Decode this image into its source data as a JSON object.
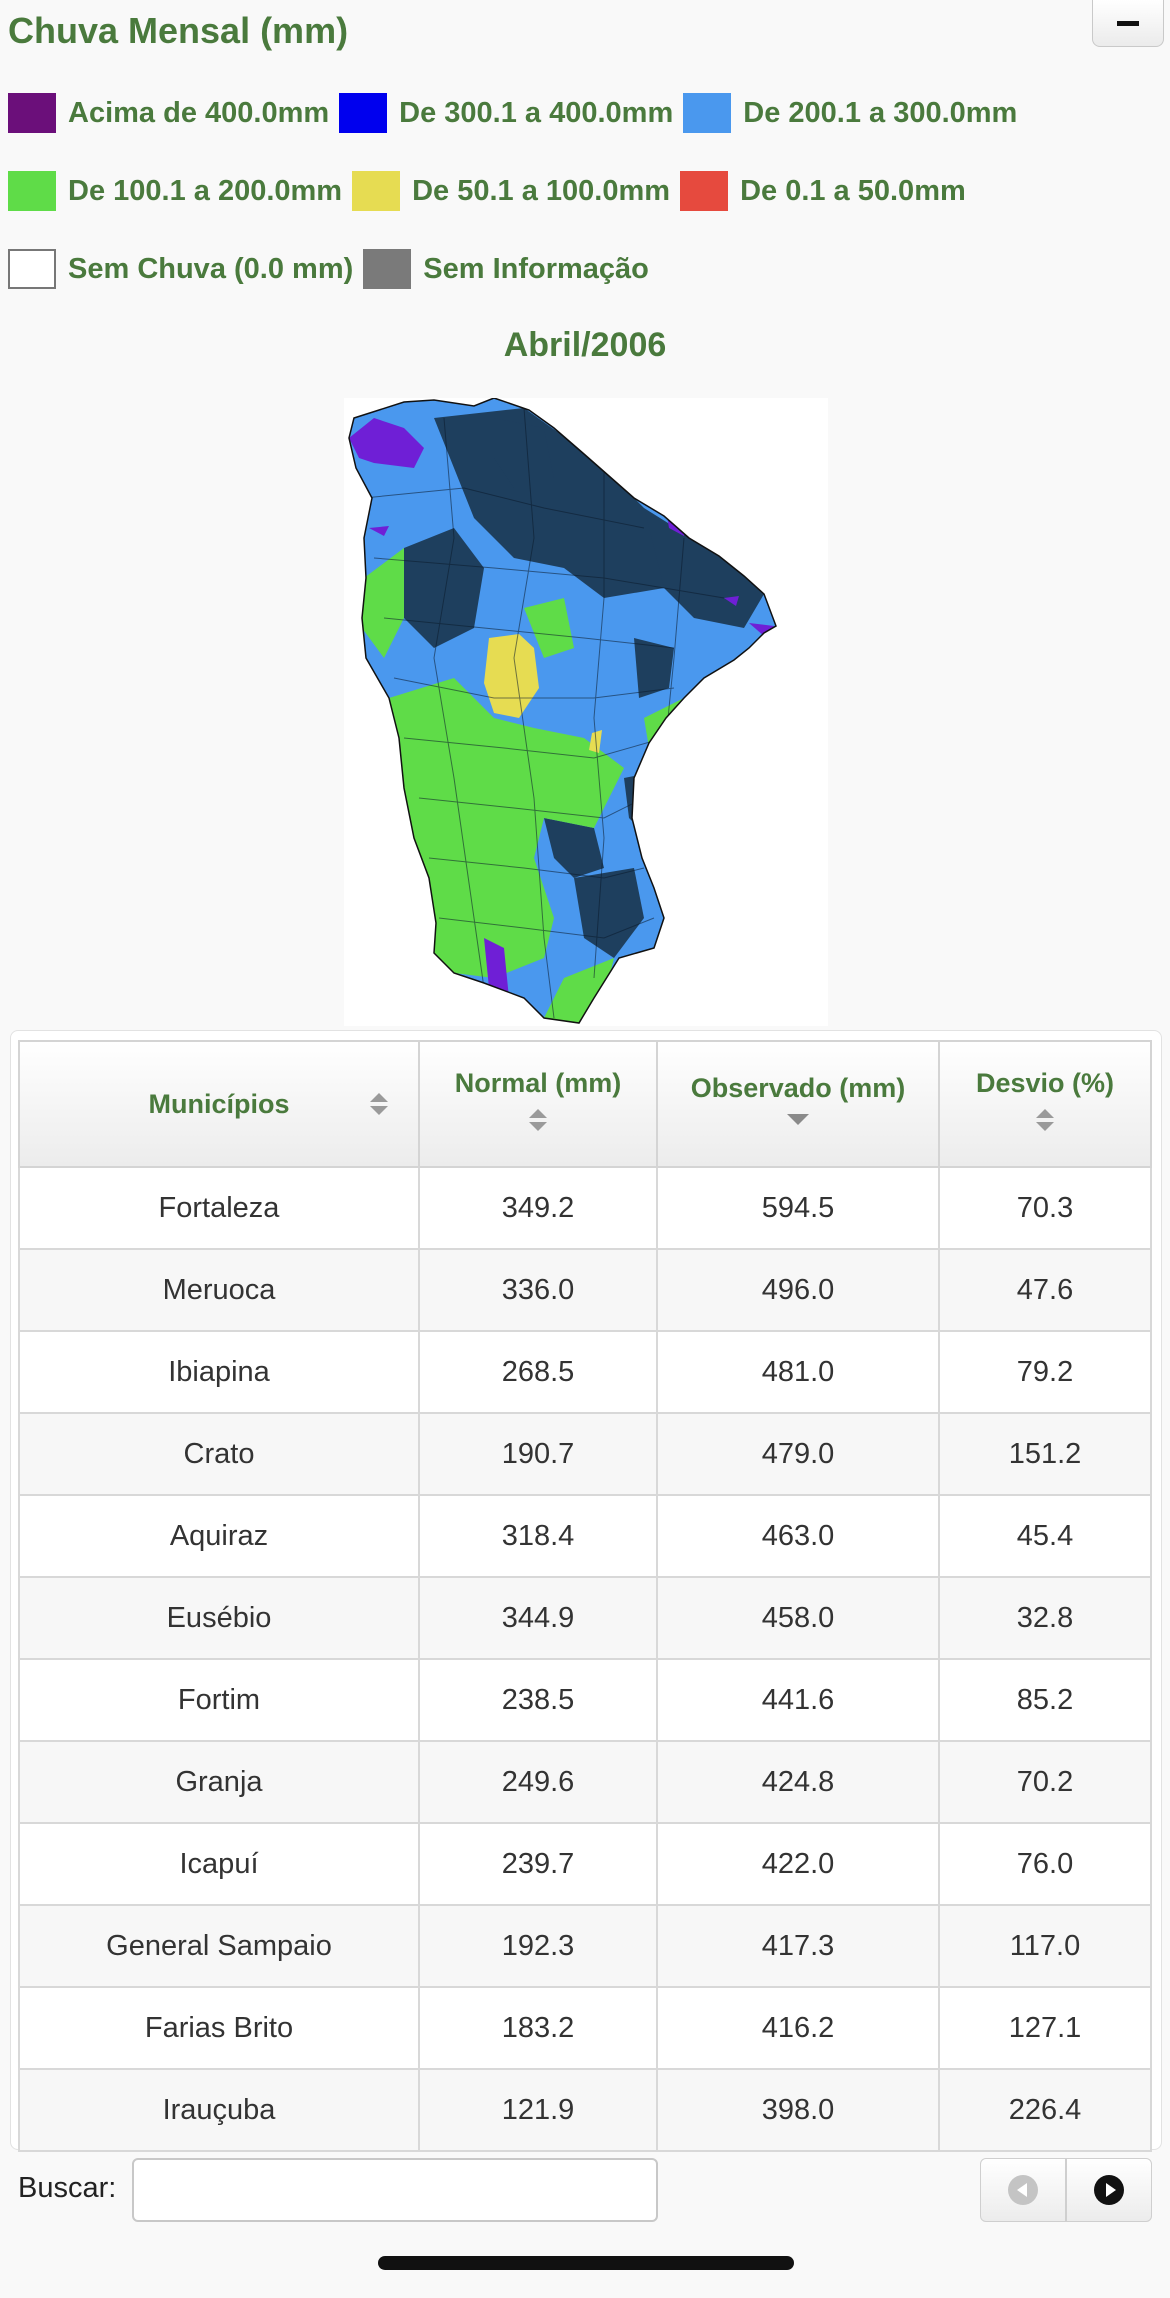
{
  "header": {
    "title": "Chuva Mensal (mm)"
  },
  "legend": [
    [
      {
        "label": "Acima de 400.0mm",
        "color": "#6b0f7a"
      },
      {
        "label": "De 300.1 a 400.0mm",
        "color": "#0000ee"
      },
      {
        "label": "De 200.1 a 300.0mm",
        "color": "#4a98ee"
      }
    ],
    [
      {
        "label": "De 100.1 a 200.0mm",
        "color": "#5fdc48"
      },
      {
        "label": "De 50.1 a 100.0mm",
        "color": "#e6dc52"
      },
      {
        "label": "De 0.1 a 50.0mm",
        "color": "#e64a3e"
      }
    ],
    [
      {
        "label": "Sem Chuva (0.0 mm)",
        "color": "#ffffff"
      },
      {
        "label": "Sem Informação",
        "color": "#7a7a7a"
      }
    ]
  ],
  "map": {
    "title": "Abril/2006"
  },
  "table": {
    "headers": {
      "municipios": "Municípios",
      "normal": "Normal (mm)",
      "observado": "Observado (mm)",
      "desvio": "Desvio (%)"
    },
    "rows": [
      [
        "Fortaleza",
        "349.2",
        "594.5",
        "70.3"
      ],
      [
        "Meruoca",
        "336.0",
        "496.0",
        "47.6"
      ],
      [
        "Ibiapina",
        "268.5",
        "481.0",
        "79.2"
      ],
      [
        "Crato",
        "190.7",
        "479.0",
        "151.2"
      ],
      [
        "Aquiraz",
        "318.4",
        "463.0",
        "45.4"
      ],
      [
        "Eusébio",
        "344.9",
        "458.0",
        "32.8"
      ],
      [
        "Fortim",
        "238.5",
        "441.6",
        "85.2"
      ],
      [
        "Granja",
        "249.6",
        "424.8",
        "70.2"
      ],
      [
        "Icapuí",
        "239.7",
        "422.0",
        "76.0"
      ],
      [
        "General Sampaio",
        "192.3",
        "417.3",
        "117.0"
      ],
      [
        "Farias Brito",
        "183.2",
        "416.2",
        "127.1"
      ],
      [
        "Irauçuba",
        "121.9",
        "398.0",
        "226.4"
      ]
    ]
  },
  "search": {
    "label": "Buscar:",
    "value": ""
  },
  "colors": {
    "accent_green": "#4a7a3d",
    "dark_navy": "#1e3f5e",
    "mid_blue": "#4a98ee",
    "light_green": "#5fdc48",
    "yellow": "#e6dc52",
    "purple": "#6f1fd6"
  }
}
